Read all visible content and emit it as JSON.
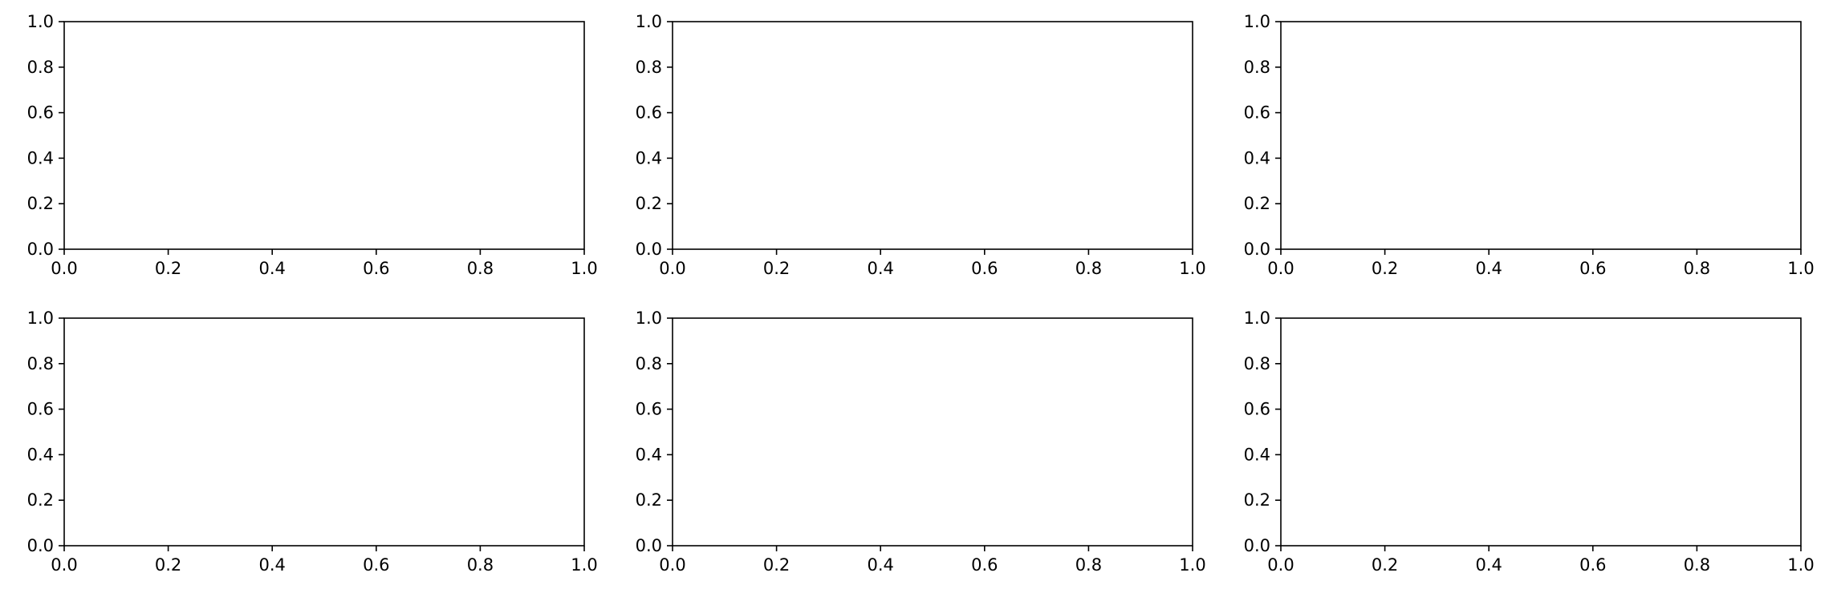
{
  "chart_data": [
    {
      "type": "scatter",
      "position": "row-1-col-1",
      "xlim": [
        0,
        1
      ],
      "ylim": [
        0,
        1
      ],
      "series": [],
      "xticks": [
        "0.0",
        "0.2",
        "0.4",
        "0.6",
        "0.8",
        "1.0"
      ],
      "yticks": [
        "0.0",
        "0.2",
        "0.4",
        "0.6",
        "0.8",
        "1.0"
      ],
      "title": "",
      "xlabel": "",
      "ylabel": "",
      "grid": false
    },
    {
      "type": "scatter",
      "position": "row-1-col-2",
      "xlim": [
        0,
        1
      ],
      "ylim": [
        0,
        1
      ],
      "series": [],
      "xticks": [
        "0.0",
        "0.2",
        "0.4",
        "0.6",
        "0.8",
        "1.0"
      ],
      "yticks": [
        "0.0",
        "0.2",
        "0.4",
        "0.6",
        "0.8",
        "1.0"
      ],
      "title": "",
      "xlabel": "",
      "ylabel": "",
      "grid": false
    },
    {
      "type": "scatter",
      "position": "row-1-col-3",
      "xlim": [
        0,
        1
      ],
      "ylim": [
        0,
        1
      ],
      "series": [],
      "xticks": [
        "0.0",
        "0.2",
        "0.4",
        "0.6",
        "0.8",
        "1.0"
      ],
      "yticks": [
        "0.0",
        "0.2",
        "0.4",
        "0.6",
        "0.8",
        "1.0"
      ],
      "title": "",
      "xlabel": "",
      "ylabel": "",
      "grid": false
    },
    {
      "type": "scatter",
      "position": "row-2-col-1",
      "xlim": [
        0,
        1
      ],
      "ylim": [
        0,
        1
      ],
      "series": [],
      "xticks": [
        "0.0",
        "0.2",
        "0.4",
        "0.6",
        "0.8",
        "1.0"
      ],
      "yticks": [
        "0.0",
        "0.2",
        "0.4",
        "0.6",
        "0.8",
        "1.0"
      ],
      "title": "",
      "xlabel": "",
      "ylabel": "",
      "grid": false
    },
    {
      "type": "scatter",
      "position": "row-2-col-2",
      "xlim": [
        0,
        1
      ],
      "ylim": [
        0,
        1
      ],
      "series": [],
      "xticks": [
        "0.0",
        "0.2",
        "0.4",
        "0.6",
        "0.8",
        "1.0"
      ],
      "yticks": [
        "0.0",
        "0.2",
        "0.4",
        "0.6",
        "0.8",
        "1.0"
      ],
      "title": "",
      "xlabel": "",
      "ylabel": "",
      "grid": false
    },
    {
      "type": "scatter",
      "position": "row-2-col-3",
      "xlim": [
        0,
        1
      ],
      "ylim": [
        0,
        1
      ],
      "series": [],
      "xticks": [
        "0.0",
        "0.2",
        "0.4",
        "0.6",
        "0.8",
        "1.0"
      ],
      "yticks": [
        "0.0",
        "0.2",
        "0.4",
        "0.6",
        "0.8",
        "1.0"
      ],
      "title": "",
      "xlabel": "",
      "ylabel": "",
      "grid": false
    }
  ],
  "colors": {
    "frame": "#000000",
    "text": "#000000",
    "background": "#ffffff"
  }
}
